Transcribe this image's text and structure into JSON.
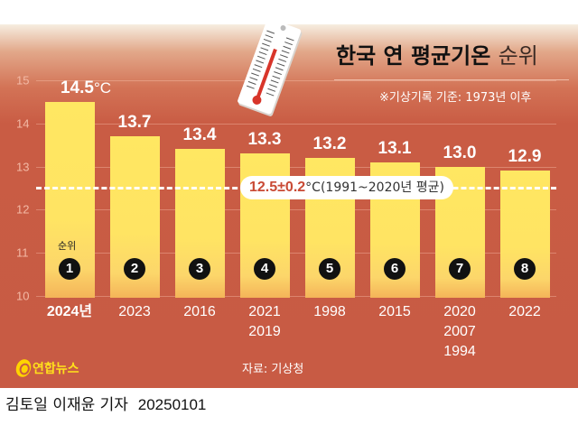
{
  "header": {
    "title": "한국 연 평균기온",
    "title_suffix": "순위",
    "note": "※기상기록 기준: 1973년 이후"
  },
  "average": {
    "value": "12.5±0.2",
    "unit": "°C",
    "period": "(1991~2020년 평균)"
  },
  "rank_label": "순위",
  "bars": [
    {
      "rank": "1",
      "value": "14.5",
      "unit": "°C",
      "years": [
        "2024년"
      ]
    },
    {
      "rank": "2",
      "value": "13.7",
      "unit": "",
      "years": [
        "2023"
      ]
    },
    {
      "rank": "3",
      "value": "13.4",
      "unit": "",
      "years": [
        "2016"
      ]
    },
    {
      "rank": "4",
      "value": "13.3",
      "unit": "",
      "years": [
        "2021",
        "2019"
      ]
    },
    {
      "rank": "5",
      "value": "13.2",
      "unit": "",
      "years": [
        "1998"
      ]
    },
    {
      "rank": "6",
      "value": "13.1",
      "unit": "",
      "years": [
        "2015"
      ]
    },
    {
      "rank": "7",
      "value": "13.0",
      "unit": "",
      "years": [
        "2020",
        "2007",
        "1994"
      ]
    },
    {
      "rank": "8",
      "value": "12.9",
      "unit": "",
      "years": [
        "2022"
      ]
    }
  ],
  "y_ticks": [
    "15",
    "14",
    "13",
    "12",
    "11",
    "10"
  ],
  "footer": {
    "logo": "연합뉴스",
    "source": "자료: 기상청",
    "credit": "김토일 이재윤 기자",
    "date": "20250101"
  },
  "colors": {
    "background": "#c85b44",
    "bar": "#ffe463",
    "avg_line": "#ffffff",
    "accent_text": "#c94a35"
  },
  "chart_data": {
    "type": "bar",
    "title": "한국 연 평균기온 순위",
    "subtitle": "※기상기록 기준: 1973년 이후",
    "categories": [
      "2024",
      "2023",
      "2016",
      "2021/2019",
      "1998",
      "2015",
      "2020/2007/1994",
      "2022"
    ],
    "values": [
      14.5,
      13.7,
      13.4,
      13.3,
      13.2,
      13.1,
      13.0,
      12.9
    ],
    "ranks": [
      1,
      2,
      3,
      4,
      5,
      6,
      7,
      8
    ],
    "reference_line": {
      "value": 12.5,
      "label": "12.5±0.2°C(1991~2020년 평균)"
    },
    "xlabel": "",
    "ylabel": "°C",
    "ylim": [
      10,
      15
    ],
    "yticks": [
      10,
      11,
      12,
      13,
      14,
      15
    ],
    "grid": true,
    "legend": "none",
    "source": "자료: 기상청"
  }
}
